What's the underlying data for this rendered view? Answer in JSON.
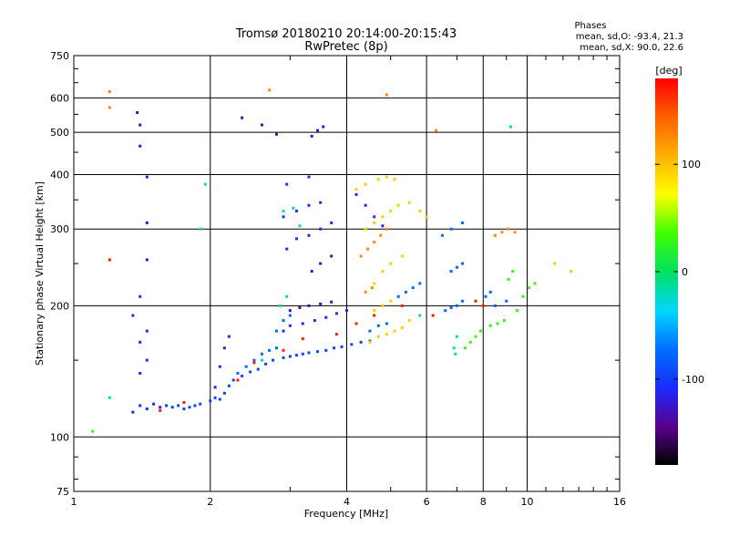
{
  "window": {
    "title": "Tromsø 20180210 20:14:00-20:15:43 RwPretec (8p)"
  },
  "header": {
    "title": "Tromsø 20180210 20:14:00-20:15:43",
    "subtitle": "RwPretec (8p)",
    "phases_heading": "Phases",
    "phases_o": "mean, sd,O: -93.4, 21.3",
    "phases_x": "mean, sd,X:  90.0, 22.6"
  },
  "chart_data": {
    "type": "scatter",
    "title": "Tromsø 20180210 20:14:00-20:15:43",
    "subtitle": "RwPretec (8p)",
    "xlabel": "Frequency [MHz]",
    "ylabel": "Stationary phase Virtual Height [km]",
    "x_scale": "log",
    "y_scale": "log",
    "xlim": [
      1,
      16
    ],
    "ylim": [
      75,
      750
    ],
    "x_ticks": [
      1,
      2,
      4,
      6,
      8,
      10,
      16
    ],
    "y_ticks": [
      75,
      100,
      200,
      300,
      400,
      500,
      600,
      750
    ],
    "grid": true,
    "colorbar": {
      "label": "[deg]",
      "range": [
        -180,
        180
      ],
      "ticks": [
        -100,
        0,
        100
      ],
      "colors": [
        "#000000",
        "#5a0090",
        "#1a2aff",
        "#0070ff",
        "#00d8ff",
        "#00e060",
        "#40ff00",
        "#ffff00",
        "#ffb000",
        "#ff6000",
        "#ff0000"
      ]
    },
    "series": [
      {
        "color_value": -95,
        "points": [
          [
            1.6,
            118
          ],
          [
            1.65,
            117
          ],
          [
            1.7,
            118
          ],
          [
            1.75,
            116
          ],
          [
            1.8,
            117
          ],
          [
            1.85,
            118
          ],
          [
            1.9,
            119
          ],
          [
            2.0,
            121
          ],
          [
            2.05,
            123
          ],
          [
            2.1,
            122
          ],
          [
            2.15,
            126
          ],
          [
            2.2,
            131
          ],
          [
            2.25,
            135
          ],
          [
            2.35,
            138
          ],
          [
            2.45,
            141
          ],
          [
            2.55,
            143
          ],
          [
            2.65,
            147
          ],
          [
            2.75,
            150
          ],
          [
            2.9,
            152
          ],
          [
            3.0,
            153
          ],
          [
            3.1,
            154
          ],
          [
            3.2,
            155
          ],
          [
            3.3,
            156
          ],
          [
            3.45,
            157
          ],
          [
            3.6,
            158
          ],
          [
            3.75,
            160
          ],
          [
            3.9,
            161
          ],
          [
            4.1,
            163
          ],
          [
            4.3,
            165
          ],
          [
            4.5,
            166
          ]
        ]
      },
      {
        "color_value": -110,
        "points": [
          [
            1.35,
            114
          ],
          [
            1.4,
            118
          ],
          [
            1.45,
            116
          ],
          [
            1.5,
            119
          ],
          [
            1.55,
            117
          ],
          [
            2.05,
            130
          ],
          [
            2.1,
            145
          ],
          [
            2.15,
            160
          ],
          [
            2.2,
            170
          ],
          [
            2.9,
            175
          ],
          [
            3.0,
            180
          ],
          [
            3.2,
            182
          ],
          [
            3.4,
            185
          ],
          [
            3.6,
            188
          ],
          [
            3.8,
            192
          ],
          [
            4.0,
            195
          ],
          [
            2.95,
            270
          ],
          [
            3.1,
            285
          ],
          [
            3.3,
            290
          ],
          [
            3.5,
            300
          ],
          [
            3.7,
            310
          ],
          [
            2.9,
            320
          ],
          [
            3.1,
            330
          ],
          [
            3.3,
            340
          ],
          [
            3.5,
            345
          ],
          [
            2.95,
            380
          ],
          [
            3.3,
            395
          ],
          [
            4.2,
            360
          ],
          [
            4.4,
            340
          ],
          [
            4.6,
            320
          ],
          [
            4.8,
            305
          ],
          [
            1.4,
            140
          ],
          [
            1.45,
            150
          ],
          [
            1.4,
            165
          ],
          [
            1.45,
            175
          ],
          [
            1.35,
            190
          ],
          [
            1.4,
            210
          ]
        ]
      },
      {
        "color_value": -130,
        "points": [
          [
            3.0,
            195
          ],
          [
            3.15,
            198
          ],
          [
            3.3,
            200
          ],
          [
            3.5,
            202
          ],
          [
            3.7,
            204
          ],
          [
            3.35,
            240
          ],
          [
            3.5,
            250
          ],
          [
            3.7,
            260
          ],
          [
            3.35,
            490
          ],
          [
            3.45,
            505
          ],
          [
            3.55,
            515
          ],
          [
            1.38,
            555
          ],
          [
            1.4,
            520
          ],
          [
            1.4,
            465
          ],
          [
            1.45,
            395
          ],
          [
            1.45,
            310
          ],
          [
            1.45,
            255
          ],
          [
            2.35,
            540
          ],
          [
            2.6,
            520
          ],
          [
            2.8,
            495
          ]
        ]
      },
      {
        "color_value": -75,
        "points": [
          [
            2.3,
            140
          ],
          [
            2.4,
            145
          ],
          [
            2.5,
            150
          ],
          [
            2.6,
            155
          ],
          [
            2.7,
            158
          ],
          [
            2.8,
            160
          ],
          [
            2.8,
            175
          ],
          [
            2.9,
            185
          ],
          [
            3.0,
            190
          ],
          [
            4.5,
            175
          ],
          [
            4.7,
            180
          ],
          [
            4.9,
            182
          ],
          [
            5.2,
            210
          ],
          [
            5.4,
            215
          ],
          [
            5.6,
            220
          ],
          [
            5.8,
            225
          ],
          [
            6.6,
            195
          ],
          [
            6.8,
            198
          ],
          [
            7.0,
            200
          ],
          [
            7.2,
            205
          ],
          [
            8.1,
            210
          ],
          [
            8.3,
            215
          ],
          [
            8.5,
            200
          ],
          [
            9.0,
            205
          ],
          [
            6.8,
            240
          ],
          [
            7.0,
            245
          ],
          [
            7.2,
            250
          ],
          [
            6.5,
            290
          ],
          [
            6.8,
            300
          ],
          [
            7.2,
            310
          ]
        ]
      },
      {
        "color_value": -20,
        "points": [
          [
            2.85,
            200
          ],
          [
            2.95,
            210
          ],
          [
            2.9,
            330
          ],
          [
            3.05,
            335
          ],
          [
            3.15,
            305
          ],
          [
            2.6,
            150
          ],
          [
            1.2,
            123
          ],
          [
            1.95,
            380
          ],
          [
            1.9,
            300
          ],
          [
            5.8,
            190
          ],
          [
            6.9,
            160
          ],
          [
            7.0,
            170
          ],
          [
            6.95,
            155
          ],
          [
            9.2,
            515
          ]
        ]
      },
      {
        "color_value": 30,
        "points": [
          [
            7.3,
            160
          ],
          [
            7.5,
            165
          ],
          [
            7.7,
            170
          ],
          [
            7.9,
            175
          ],
          [
            8.3,
            180
          ],
          [
            8.6,
            182
          ],
          [
            8.9,
            185
          ],
          [
            9.5,
            195
          ],
          [
            9.8,
            210
          ],
          [
            10.1,
            220
          ],
          [
            10.4,
            225
          ],
          [
            9.1,
            230
          ],
          [
            9.3,
            240
          ],
          [
            1.1,
            103
          ]
        ]
      },
      {
        "color_value": 95,
        "points": [
          [
            4.5,
            165
          ],
          [
            4.7,
            170
          ],
          [
            4.9,
            172
          ],
          [
            5.1,
            175
          ],
          [
            5.3,
            178
          ],
          [
            5.5,
            185
          ],
          [
            4.6,
            195
          ],
          [
            4.8,
            200
          ],
          [
            5.0,
            205
          ],
          [
            4.6,
            225
          ],
          [
            4.8,
            240
          ],
          [
            5.0,
            250
          ],
          [
            5.3,
            260
          ],
          [
            4.4,
            300
          ],
          [
            4.6,
            310
          ],
          [
            4.8,
            320
          ],
          [
            5.0,
            330
          ],
          [
            5.2,
            340
          ],
          [
            5.5,
            345
          ],
          [
            5.8,
            330
          ],
          [
            6.0,
            320
          ],
          [
            4.2,
            370
          ],
          [
            4.4,
            380
          ],
          [
            4.7,
            390
          ],
          [
            4.9,
            395
          ],
          [
            5.1,
            390
          ],
          [
            11.5,
            250
          ],
          [
            12.5,
            240
          ]
        ]
      },
      {
        "color_value": 125,
        "points": [
          [
            4.3,
            260
          ],
          [
            4.45,
            270
          ],
          [
            4.6,
            280
          ],
          [
            4.75,
            290
          ],
          [
            4.9,
            300
          ],
          [
            4.4,
            215
          ],
          [
            4.55,
            220
          ],
          [
            8.5,
            290
          ],
          [
            8.8,
            295
          ],
          [
            9.1,
            300
          ],
          [
            9.4,
            295
          ],
          [
            4.9,
            610
          ],
          [
            6.3,
            505
          ],
          [
            1.2,
            620
          ],
          [
            1.2,
            570
          ],
          [
            2.7,
            625
          ]
        ]
      },
      {
        "color_value": 170,
        "points": [
          [
            2.3,
            135
          ],
          [
            2.5,
            148
          ],
          [
            2.9,
            158
          ],
          [
            3.2,
            168
          ],
          [
            3.8,
            172
          ],
          [
            4.2,
            182
          ],
          [
            4.6,
            190
          ],
          [
            5.3,
            200
          ],
          [
            6.2,
            190
          ],
          [
            7.7,
            205
          ],
          [
            8.0,
            200
          ],
          [
            1.2,
            255
          ],
          [
            1.55,
            115
          ],
          [
            1.75,
            120
          ]
        ]
      }
    ]
  }
}
